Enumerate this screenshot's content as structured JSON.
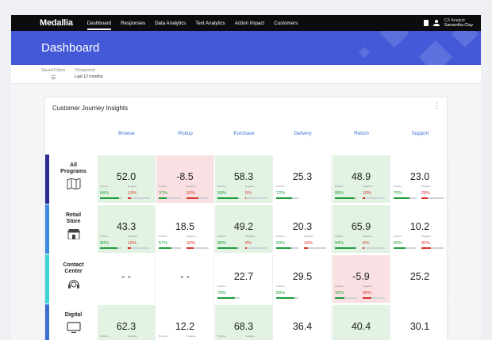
{
  "nav": {
    "brand": "Medallia",
    "items": [
      "Dashboard",
      "Responses",
      "Data Analytics",
      "Text Analytics",
      "Action Impact",
      "Customers"
    ],
    "user_role": "CX Analyst",
    "user_name": "Samantha Clay"
  },
  "page_title": "Dashboard",
  "filters": {
    "saved_label": "Saved Filters",
    "timeperiod_label": "Timeperiod",
    "timeperiod_value": "Last 12 months"
  },
  "card": {
    "title": "Customer Journey Insights",
    "columns": [
      "Browse",
      "Pickup",
      "Purchase",
      "Delivery",
      "Return",
      "Support"
    ],
    "positive_label": "Positive",
    "negative_label": "Negative",
    "rows": [
      {
        "label_line1": "All",
        "label_line2": "Programs",
        "icon": "map-icon",
        "color": "#2b2c8f",
        "cells": [
          {
            "v": "52.0",
            "p": "84%",
            "n": "13%",
            "tone": "green"
          },
          {
            "v": "-8.5",
            "p": "37%",
            "n": "53%",
            "tone": "red"
          },
          {
            "v": "58.3",
            "p": "93%",
            "n": "5%",
            "tone": "green"
          },
          {
            "v": "25.3",
            "p": "72%",
            "n": "",
            "tone": ""
          },
          {
            "v": "48.9",
            "p": "88%",
            "n": "10%",
            "tone": "green"
          },
          {
            "v": "23.0",
            "p": "70%",
            "n": "28%",
            "tone": ""
          }
        ]
      },
      {
        "label_line1": "Retail",
        "label_line2": "Store",
        "icon": "store-icon",
        "color": "#3b8be0",
        "cells": [
          {
            "v": "43.3",
            "p": "80%",
            "n": "16%",
            "tone": "green"
          },
          {
            "v": "18.5",
            "p": "57%",
            "n": "32%",
            "tone": ""
          },
          {
            "v": "49.2",
            "p": "88%",
            "n": "8%",
            "tone": "green"
          },
          {
            "v": "20.3",
            "p": "69%",
            "n": "18%",
            "tone": ""
          },
          {
            "v": "65.9",
            "p": "94%",
            "n": "6%",
            "tone": "green"
          },
          {
            "v": "10.2",
            "p": "55%",
            "n": "42%",
            "tone": ""
          }
        ]
      },
      {
        "label_line1": "Contact",
        "label_line2": "Center",
        "icon": "headset-icon",
        "color": "#3fd3d3",
        "cells": [
          {
            "v": "- -",
            "p": "",
            "n": "",
            "tone": ""
          },
          {
            "v": "- -",
            "p": "",
            "n": "",
            "tone": ""
          },
          {
            "v": "22.7",
            "p": "78%",
            "n": "",
            "tone": ""
          },
          {
            "v": "29.5",
            "p": "83%",
            "n": "",
            "tone": ""
          },
          {
            "v": "-5.9",
            "p": "42%",
            "n": "40%",
            "tone": "red"
          },
          {
            "v": "25.2",
            "p": "",
            "n": "",
            "tone": ""
          }
        ]
      },
      {
        "label_line1": "Digital",
        "label_line2": "",
        "icon": "monitor-icon",
        "color": "#3b6fd1",
        "cells": [
          {
            "v": "62.3",
            "p": "92%",
            "n": "6%",
            "tone": "green"
          },
          {
            "v": "12.2",
            "p": "52%",
            "n": "26%",
            "tone": ""
          },
          {
            "v": "68.3",
            "p": "92%",
            "n": "2%",
            "tone": "green"
          },
          {
            "v": "36.4",
            "p": "",
            "n": "",
            "tone": ""
          },
          {
            "v": "40.4",
            "p": "",
            "n": "",
            "tone": "green"
          },
          {
            "v": "30.1",
            "p": "",
            "n": "",
            "tone": ""
          }
        ]
      }
    ]
  }
}
